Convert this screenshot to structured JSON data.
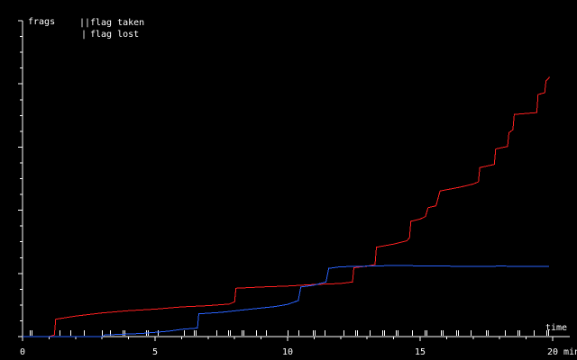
{
  "chart_data": {
    "type": "line",
    "ylabel": "frags",
    "xlabel": "time",
    "x_unit": "min",
    "xlim": [
      0,
      20
    ],
    "ylim": [
      0,
      100
    ],
    "x_ticks": [
      0,
      5,
      10,
      15,
      20
    ],
    "x_tick_labels": [
      "0",
      "5",
      "10",
      "15",
      "20"
    ],
    "x_unit_label": "min",
    "y_ticks": [
      0,
      20,
      40,
      60,
      80,
      100
    ],
    "legend": {
      "placement": "top-left",
      "entries": [
        {
          "symbol": "||",
          "label": "flag taken"
        },
        {
          "symbol": "|",
          "label": "flag lost"
        }
      ]
    },
    "series": [
      {
        "color": "#ff2020",
        "points": [
          [
            0.0,
            0.0
          ],
          [
            1.0,
            0.0
          ],
          [
            1.2,
            0.5
          ],
          [
            1.25,
            5.5
          ],
          [
            2.0,
            6.5
          ],
          [
            3.0,
            7.5
          ],
          [
            4.0,
            8.2
          ],
          [
            5.0,
            8.7
          ],
          [
            6.0,
            9.4
          ],
          [
            7.0,
            9.8
          ],
          [
            7.8,
            10.3
          ],
          [
            8.0,
            11.0
          ],
          [
            8.05,
            15.3
          ],
          [
            9.0,
            15.7
          ],
          [
            10.0,
            16.0
          ],
          [
            11.0,
            16.5
          ],
          [
            12.0,
            16.8
          ],
          [
            12.45,
            17.3
          ],
          [
            12.5,
            21.8
          ],
          [
            13.0,
            22.3
          ],
          [
            13.3,
            22.8
          ],
          [
            13.35,
            28.3
          ],
          [
            14.0,
            29.3
          ],
          [
            14.5,
            30.3
          ],
          [
            14.6,
            31.3
          ],
          [
            14.65,
            36.5
          ],
          [
            15.0,
            37.2
          ],
          [
            15.2,
            38.0
          ],
          [
            15.3,
            40.8
          ],
          [
            15.6,
            41.4
          ],
          [
            15.75,
            46.1
          ],
          [
            16.5,
            47.3
          ],
          [
            17.0,
            48.3
          ],
          [
            17.2,
            49.0
          ],
          [
            17.25,
            53.5
          ],
          [
            17.8,
            54.5
          ],
          [
            17.85,
            59.4
          ],
          [
            18.3,
            60.2
          ],
          [
            18.35,
            64.5
          ],
          [
            18.5,
            65.5
          ],
          [
            18.55,
            70.3
          ],
          [
            19.4,
            70.9
          ],
          [
            19.45,
            76.6
          ],
          [
            19.7,
            77.2
          ],
          [
            19.75,
            81.0
          ],
          [
            19.85,
            81.8
          ],
          [
            19.88,
            82.2
          ]
        ]
      },
      {
        "color": "#2a63ff",
        "points": [
          [
            0.0,
            0.0
          ],
          [
            3.0,
            0.0
          ],
          [
            3.1,
            0.5
          ],
          [
            4.5,
            1.0
          ],
          [
            5.5,
            1.7
          ],
          [
            6.0,
            2.3
          ],
          [
            6.6,
            2.7
          ],
          [
            6.65,
            7.2
          ],
          [
            7.5,
            7.7
          ],
          [
            8.5,
            8.6
          ],
          [
            9.5,
            9.5
          ],
          [
            10.0,
            10.2
          ],
          [
            10.4,
            11.4
          ],
          [
            10.5,
            15.7
          ],
          [
            11.0,
            16.3
          ],
          [
            11.45,
            17.3
          ],
          [
            11.55,
            21.6
          ],
          [
            12.0,
            22.1
          ],
          [
            14.0,
            22.5
          ],
          [
            16.0,
            22.3
          ],
          [
            17.0,
            22.2
          ],
          [
            18.0,
            22.3
          ],
          [
            19.87,
            22.2
          ]
        ]
      }
    ],
    "flag_marks": [
      {
        "x": 0.3,
        "type": "flag taken"
      },
      {
        "x": 1.4,
        "type": "flag lost"
      },
      {
        "x": 1.8,
        "type": "flag lost"
      },
      {
        "x": 2.3,
        "type": "flag lost"
      },
      {
        "x": 3.0,
        "type": "flag lost"
      },
      {
        "x": 3.3,
        "type": "flag lost"
      },
      {
        "x": 3.8,
        "type": "flag taken"
      },
      {
        "x": 4.7,
        "type": "flag taken"
      },
      {
        "x": 5.1,
        "type": "flag lost"
      },
      {
        "x": 6.1,
        "type": "flag lost"
      },
      {
        "x": 6.5,
        "type": "flag taken"
      },
      {
        "x": 7.3,
        "type": "flag lost"
      },
      {
        "x": 7.8,
        "type": "flag taken"
      },
      {
        "x": 8.3,
        "type": "flag taken"
      },
      {
        "x": 8.8,
        "type": "flag lost"
      },
      {
        "x": 9.2,
        "type": "flag lost"
      },
      {
        "x": 10.0,
        "type": "flag lost"
      },
      {
        "x": 10.4,
        "type": "flag lost"
      },
      {
        "x": 11.0,
        "type": "flag taken"
      },
      {
        "x": 11.4,
        "type": "flag lost"
      },
      {
        "x": 12.1,
        "type": "flag lost"
      },
      {
        "x": 12.6,
        "type": "flag taken"
      },
      {
        "x": 13.1,
        "type": "flag lost"
      },
      {
        "x": 13.6,
        "type": "flag taken"
      },
      {
        "x": 14.1,
        "type": "flag taken"
      },
      {
        "x": 14.7,
        "type": "flag lost"
      },
      {
        "x": 15.2,
        "type": "flag taken"
      },
      {
        "x": 15.8,
        "type": "flag taken"
      },
      {
        "x": 16.4,
        "type": "flag taken"
      },
      {
        "x": 16.9,
        "type": "flag lost"
      },
      {
        "x": 17.5,
        "type": "flag taken"
      },
      {
        "x": 18.2,
        "type": "flag lost"
      },
      {
        "x": 18.7,
        "type": "flag taken"
      },
      {
        "x": 19.3,
        "type": "flag lost"
      },
      {
        "x": 19.8,
        "type": "flag taken"
      }
    ]
  }
}
